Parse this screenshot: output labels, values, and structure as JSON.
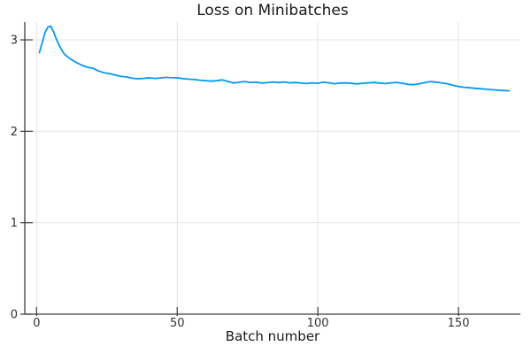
{
  "figure": {
    "background": "#ffffff"
  },
  "chart_data": {
    "type": "line",
    "title": "Loss on Minibatches",
    "xlabel": "Batch number",
    "ylabel": "",
    "legend": "none",
    "grid": true,
    "xlim": [
      -4.2,
      172
    ],
    "ylim": [
      0,
      3.194
    ],
    "xticks": {
      "values": [
        0,
        50,
        100,
        150
      ],
      "labels": [
        "0",
        "50",
        "100",
        "150"
      ]
    },
    "yticks": {
      "values": [
        0,
        1,
        2,
        3
      ],
      "labels": [
        "0",
        "1",
        "2",
        "3"
      ]
    },
    "colors": {
      "line": "#009af9",
      "grid": "#e4e4e4",
      "axis": "#3c3c3c",
      "tick_label": "#333333",
      "title": "#1a1a1a"
    },
    "series": [
      {
        "name": "loss",
        "color": "#009af9",
        "x": [
          1,
          2,
          3,
          4,
          5,
          6,
          7,
          8,
          9,
          10,
          12,
          14,
          16,
          18,
          20,
          22,
          24,
          26,
          28,
          30,
          32,
          34,
          36,
          38,
          40,
          42,
          44,
          46,
          48,
          50,
          52,
          54,
          56,
          58,
          60,
          62,
          64,
          66,
          68,
          70,
          72,
          74,
          76,
          78,
          80,
          82,
          84,
          86,
          88,
          90,
          92,
          94,
          96,
          98,
          100,
          102,
          104,
          106,
          108,
          110,
          112,
          114,
          116,
          118,
          120,
          122,
          124,
          126,
          128,
          130,
          132,
          134,
          136,
          138,
          140,
          142,
          144,
          146,
          148,
          150,
          152,
          154,
          156,
          158,
          160,
          162,
          164,
          166,
          168
        ],
        "y": [
          2.86,
          2.97,
          3.08,
          3.14,
          3.15,
          3.09,
          3.01,
          2.94,
          2.885,
          2.84,
          2.79,
          2.755,
          2.725,
          2.7,
          2.69,
          2.66,
          2.64,
          2.63,
          2.615,
          2.6,
          2.595,
          2.58,
          2.575,
          2.578,
          2.585,
          2.578,
          2.583,
          2.59,
          2.585,
          2.585,
          2.576,
          2.571,
          2.566,
          2.559,
          2.554,
          2.548,
          2.553,
          2.562,
          2.546,
          2.528,
          2.536,
          2.545,
          2.533,
          2.537,
          2.528,
          2.532,
          2.54,
          2.533,
          2.54,
          2.53,
          2.534,
          2.527,
          2.522,
          2.53,
          2.525,
          2.537,
          2.53,
          2.52,
          2.528,
          2.53,
          2.524,
          2.518,
          2.526,
          2.53,
          2.534,
          2.528,
          2.522,
          2.53,
          2.535,
          2.525,
          2.514,
          2.51,
          2.52,
          2.532,
          2.545,
          2.538,
          2.53,
          2.52,
          2.503,
          2.49,
          2.482,
          2.476,
          2.47,
          2.465,
          2.459,
          2.455,
          2.45,
          2.446,
          2.443
        ]
      }
    ]
  }
}
